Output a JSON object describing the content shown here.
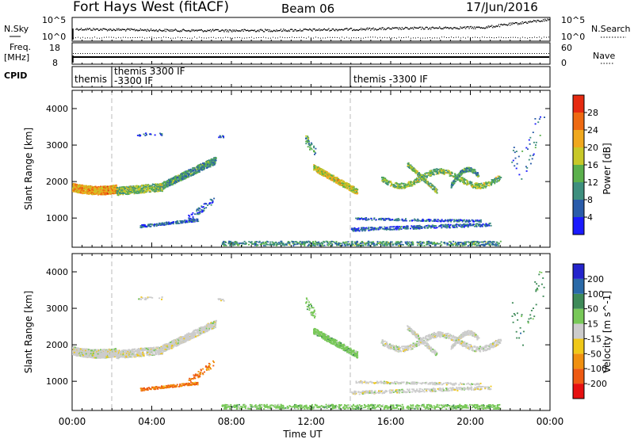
{
  "header": {
    "title": "Fort Hays West (fitACF)",
    "beam": "Beam 06",
    "date": "17/Jun/2016"
  },
  "noise_panel": {
    "left_label": "N.Sky",
    "left_ticks": [
      "10^5",
      "10^0"
    ],
    "right_label": "N.Search",
    "right_ticks": [
      "10^5",
      "10^0"
    ]
  },
  "freq_panel": {
    "left_label_1": "Freq.",
    "left_label_2": "[MHz]",
    "left_ticks": [
      "18",
      "8"
    ],
    "right_label": "Nave",
    "right_ticks": [
      "60",
      "0"
    ]
  },
  "cpid": {
    "label": "CPID",
    "segments": [
      {
        "line1": "themis",
        "line2": ""
      },
      {
        "line1": "themis 3300 IF",
        "line2": "-3300 IF"
      },
      {
        "line1": "themis -3300 IF",
        "line2": ""
      }
    ]
  },
  "chart_data": [
    {
      "type": "heatmap",
      "title": "",
      "ylabel": "Slant Range [km]",
      "xlabel": "",
      "xlim": [
        0,
        24
      ],
      "ylim": [
        200,
        4500
      ],
      "yticks": [
        "1000",
        "2000",
        "3000",
        "4000"
      ],
      "colorbar": {
        "label": "Power [dB]",
        "ticks": [
          "4",
          "8",
          "12",
          "16",
          "20",
          "24",
          "28"
        ],
        "colors": [
          "#1a1aff",
          "#2a5caa",
          "#3e8f7e",
          "#5bb04c",
          "#c8c828",
          "#f0a81e",
          "#ee6a12",
          "#e62a10"
        ]
      }
    },
    {
      "type": "heatmap",
      "title": "",
      "ylabel": "Slant Range [km]",
      "xlabel": "Time UT",
      "xlim": [
        0,
        24
      ],
      "ylim": [
        200,
        4500
      ],
      "yticks": [
        "1000",
        "2000",
        "3000",
        "4000"
      ],
      "xticks": [
        "00:00",
        "04:00",
        "08:00",
        "12:00",
        "16:00",
        "20:00",
        "00:00"
      ],
      "colorbar": {
        "label": "Velocity [m s^-1]",
        "ticks": [
          "200",
          "100",
          "50",
          "15",
          "-15",
          "-50",
          "-100",
          "-200"
        ],
        "colors": [
          "#2424cc",
          "#2a6aa8",
          "#3e8a58",
          "#78c858",
          "#cccccc",
          "#f0c818",
          "#f09010",
          "#ee5a12",
          "#e61010"
        ]
      }
    }
  ]
}
